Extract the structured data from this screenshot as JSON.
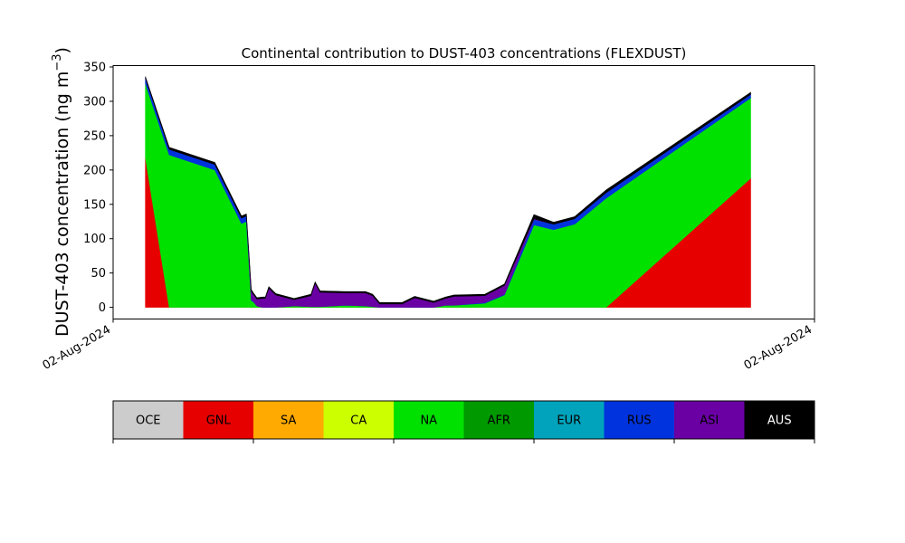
{
  "chart_data": {
    "type": "area",
    "title": "Continental contribution to DUST-403 concentrations (FLEXDUST)",
    "ylabel": "DUST-403 concentration (ng m",
    "ylabel_unit_exponent": "−3",
    "ylabel_close": ")",
    "ylim": [
      -17,
      352
    ],
    "yticks": [
      0,
      50,
      100,
      150,
      200,
      250,
      300,
      350
    ],
    "xlim": [
      0,
      1
    ],
    "x_tick_labels": [
      "02-Aug-2024",
      "02-Aug-2024"
    ],
    "grid": false,
    "stacked": true,
    "x": [
      0.046,
      0.08,
      0.145,
      0.183,
      0.19,
      0.197,
      0.2,
      0.205,
      0.213,
      0.217,
      0.222,
      0.232,
      0.258,
      0.282,
      0.288,
      0.295,
      0.333,
      0.36,
      0.37,
      0.38,
      0.412,
      0.43,
      0.457,
      0.474,
      0.486,
      0.53,
      0.558,
      0.6,
      0.628,
      0.658,
      0.703,
      0.909
    ],
    "series": [
      {
        "name": "GNL",
        "color": "#e60000",
        "values": [
          218,
          0,
          0,
          0,
          0,
          0,
          0,
          0,
          0,
          0,
          0,
          0,
          0,
          0,
          0,
          0,
          0,
          0,
          0,
          0,
          0,
          0,
          0,
          0,
          0,
          0,
          0,
          0,
          0,
          0,
          0,
          188
        ]
      },
      {
        "name": "NA",
        "color": "#00e100",
        "values": [
          108,
          222,
          200,
          122,
          125,
          10,
          8,
          2,
          0,
          0,
          0,
          0,
          2,
          1,
          1,
          1,
          3,
          2,
          1,
          0,
          0,
          0,
          0,
          3,
          3,
          6,
          18,
          120,
          113,
          121,
          159,
          117
        ]
      },
      {
        "name": "RUS",
        "color": "#0033dd",
        "values": [
          8,
          8,
          8,
          8,
          8,
          1,
          1,
          0,
          0,
          0,
          0,
          0,
          0,
          0,
          0,
          0,
          0,
          0,
          0,
          0,
          0,
          0,
          0,
          0,
          0,
          1,
          1,
          8,
          8,
          8,
          8,
          5
        ]
      },
      {
        "name": "ASI",
        "color": "#6a00a3",
        "values": [
          0,
          0,
          0,
          0,
          0,
          12,
          10,
          10,
          13,
          13,
          28,
          18,
          9,
          16,
          34,
          21,
          18,
          19,
          16,
          5,
          5,
          14,
          7,
          10,
          13,
          10,
          13,
          1,
          0,
          0,
          0,
          0
        ]
      },
      {
        "name": "AUS",
        "color": "#000000",
        "values": [
          2,
          3,
          3,
          3,
          3,
          3,
          2,
          2,
          2,
          2,
          2,
          2,
          2,
          2,
          2,
          2,
          2,
          2,
          2,
          2,
          2,
          2,
          2,
          2,
          2,
          2,
          2,
          6,
          3,
          3,
          4,
          3
        ]
      }
    ],
    "legend_placement": "bottom",
    "legend": [
      {
        "name": "OCE",
        "color": "#cccccc",
        "text_color": "#000000"
      },
      {
        "name": "GNL",
        "color": "#e60000",
        "text_color": "#000000"
      },
      {
        "name": "SA",
        "color": "#ffaa00",
        "text_color": "#000000"
      },
      {
        "name": "CA",
        "color": "#ccff00",
        "text_color": "#000000"
      },
      {
        "name": "NA",
        "color": "#00e100",
        "text_color": "#000000"
      },
      {
        "name": "AFR",
        "color": "#009900",
        "text_color": "#000000"
      },
      {
        "name": "EUR",
        "color": "#00a3bb",
        "text_color": "#000000"
      },
      {
        "name": "RUS",
        "color": "#0033dd",
        "text_color": "#000000"
      },
      {
        "name": "ASI",
        "color": "#6a00a3",
        "text_color": "#000000"
      },
      {
        "name": "AUS",
        "color": "#000000",
        "text_color": "#ffffff"
      }
    ]
  }
}
